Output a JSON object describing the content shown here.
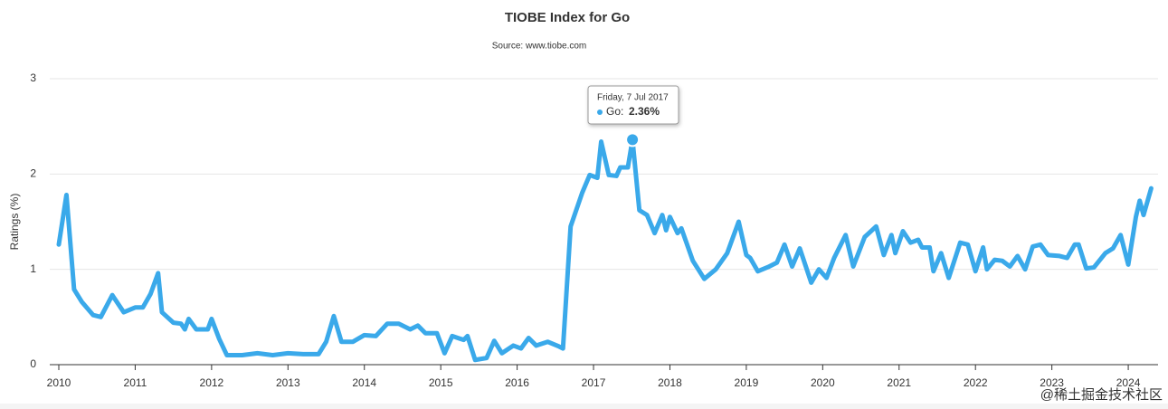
{
  "chart_data": {
    "type": "line",
    "title": "TIOBE Index for Go",
    "subtitle": "Source: www.tiobe.com",
    "y_label": "Ratings (%)",
    "xlim": [
      2010,
      2024.39
    ],
    "xticks": [
      2010,
      2011,
      2012,
      2013,
      2014,
      2015,
      2016,
      2017,
      2018,
      2019,
      2020,
      2021,
      2022,
      2023,
      2024
    ],
    "ylim": [
      0,
      3
    ],
    "yticks": [
      0,
      1,
      2,
      3
    ],
    "grid": true,
    "series": [
      {
        "name": "Go",
        "color": "#3aa9ea",
        "x": [
          2010.0,
          2010.1,
          2010.2,
          2010.3,
          2010.45,
          2010.55,
          2010.7,
          2010.85,
          2011.0,
          2011.1,
          2011.2,
          2011.3,
          2011.35,
          2011.5,
          2011.6,
          2011.65,
          2011.7,
          2011.8,
          2011.95,
          2012.0,
          2012.1,
          2012.2,
          2012.4,
          2012.6,
          2012.8,
          2013.0,
          2013.2,
          2013.4,
          2013.5,
          2013.6,
          2013.7,
          2013.85,
          2014.0,
          2014.15,
          2014.3,
          2014.45,
          2014.6,
          2014.7,
          2014.8,
          2014.95,
          2015.05,
          2015.15,
          2015.3,
          2015.35,
          2015.45,
          2015.6,
          2015.7,
          2015.8,
          2015.95,
          2016.05,
          2016.15,
          2016.25,
          2016.4,
          2016.55,
          2016.6,
          2016.7,
          2016.85,
          2016.95,
          2017.05,
          2017.1,
          2017.2,
          2017.3,
          2017.35,
          2017.45,
          2017.51,
          2017.6,
          2017.7,
          2017.8,
          2017.9,
          2017.95,
          2018.0,
          2018.1,
          2018.15,
          2018.3,
          2018.45,
          2018.6,
          2018.75,
          2018.9,
          2019.0,
          2019.05,
          2019.15,
          2019.3,
          2019.4,
          2019.5,
          2019.6,
          2019.7,
          2019.85,
          2019.95,
          2020.05,
          2020.15,
          2020.3,
          2020.4,
          2020.55,
          2020.7,
          2020.8,
          2020.9,
          2020.95,
          2021.05,
          2021.15,
          2021.25,
          2021.3,
          2021.4,
          2021.45,
          2021.55,
          2021.65,
          2021.8,
          2021.9,
          2022.0,
          2022.1,
          2022.15,
          2022.25,
          2022.35,
          2022.45,
          2022.55,
          2022.65,
          2022.75,
          2022.85,
          2022.95,
          2023.1,
          2023.2,
          2023.3,
          2023.35,
          2023.45,
          2023.55,
          2023.7,
          2023.8,
          2023.9,
          2024.0,
          2024.1,
          2024.15,
          2024.2,
          2024.3
        ],
        "values": [
          1.26,
          1.78,
          0.79,
          0.66,
          0.52,
          0.5,
          0.73,
          0.55,
          0.6,
          0.6,
          0.74,
          0.96,
          0.55,
          0.44,
          0.43,
          0.37,
          0.48,
          0.37,
          0.37,
          0.48,
          0.27,
          0.1,
          0.1,
          0.12,
          0.1,
          0.12,
          0.11,
          0.11,
          0.24,
          0.51,
          0.24,
          0.24,
          0.31,
          0.3,
          0.43,
          0.43,
          0.37,
          0.41,
          0.33,
          0.33,
          0.12,
          0.3,
          0.26,
          0.3,
          0.05,
          0.07,
          0.25,
          0.12,
          0.2,
          0.17,
          0.28,
          0.2,
          0.24,
          0.19,
          0.17,
          1.45,
          1.8,
          1.99,
          1.96,
          2.34,
          1.99,
          1.98,
          2.07,
          2.07,
          2.36,
          1.62,
          1.57,
          1.38,
          1.57,
          1.41,
          1.55,
          1.38,
          1.43,
          1.09,
          0.9,
          1.0,
          1.17,
          1.5,
          1.15,
          1.12,
          0.98,
          1.03,
          1.07,
          1.26,
          1.03,
          1.22,
          0.86,
          1.0,
          0.91,
          1.12,
          1.36,
          1.03,
          1.34,
          1.45,
          1.15,
          1.36,
          1.17,
          1.4,
          1.28,
          1.31,
          1.23,
          1.23,
          0.98,
          1.17,
          0.91,
          1.28,
          1.26,
          0.98,
          1.23,
          1.0,
          1.1,
          1.09,
          1.03,
          1.14,
          1.0,
          1.24,
          1.26,
          1.15,
          1.14,
          1.12,
          1.26,
          1.26,
          1.01,
          1.02,
          1.17,
          1.22,
          1.36,
          1.05,
          1.55,
          1.72,
          1.57,
          1.85
        ]
      }
    ],
    "tooltip": {
      "date": "Friday, 7 Jul 2017",
      "series_label": "Go:",
      "x": 2017.51,
      "value": 2.36,
      "value_label": "2.36%"
    },
    "watermark": "@稀土掘金技术社区"
  }
}
